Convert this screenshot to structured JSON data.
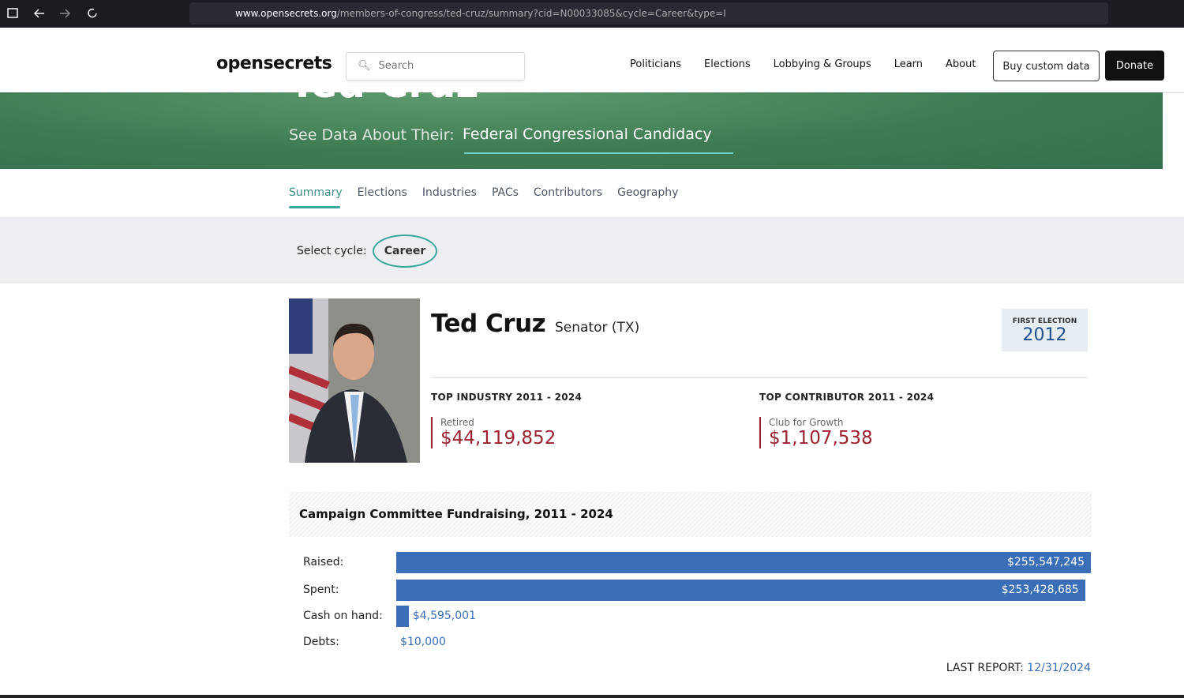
{
  "browser": {
    "url_host": "www.opensecrets.org",
    "url_path": "/members-of-congress/ted-cruz/summary?cid=N00033085&cycle=Career&type=I"
  },
  "nav": {
    "logo": "opensecrets",
    "search_placeholder": "Search",
    "links": [
      "Politicians",
      "Elections",
      "Lobbying & Groups",
      "Learn",
      "About"
    ],
    "buy_button": "Buy custom data",
    "donate_button": "Donate"
  },
  "banner": {
    "name": "Ted Cruz",
    "see_data_label": "See Data About Their:",
    "selected": "Federal Congressional Candidacy"
  },
  "tabs": [
    "Summary",
    "Elections",
    "Industries",
    "PACs",
    "Contributors",
    "Geography"
  ],
  "cycle": {
    "label": "Select cycle:",
    "value": "Career"
  },
  "profile": {
    "name": "Ted Cruz",
    "office": "Senator (TX)",
    "first_election_label": "FIRST ELECTION",
    "first_election": "2012"
  },
  "top_industry": {
    "heading": "TOP INDUSTRY 2011 - 2024",
    "name": "Retired",
    "amount": "$44,119,852"
  },
  "top_contributor": {
    "heading": "TOP CONTRIBUTOR 2011 - 2024",
    "name": "Club for Growth",
    "amount": "$1,107,538"
  },
  "fundraising": {
    "title": "Campaign Committee Fundraising, 2011 - 2024",
    "categories": [
      "Raised:",
      "Spent:",
      "Cash on hand:",
      "Debts:"
    ],
    "values": [
      255547245,
      253428685,
      4595001,
      10000
    ],
    "value_labels": [
      "$255,547,245",
      "$253,428,685",
      "$4,595,001",
      "$10,000"
    ],
    "color": "#3a6fb7",
    "last_report_label": "LAST REPORT:",
    "last_report_date": "12/31/2024"
  }
}
